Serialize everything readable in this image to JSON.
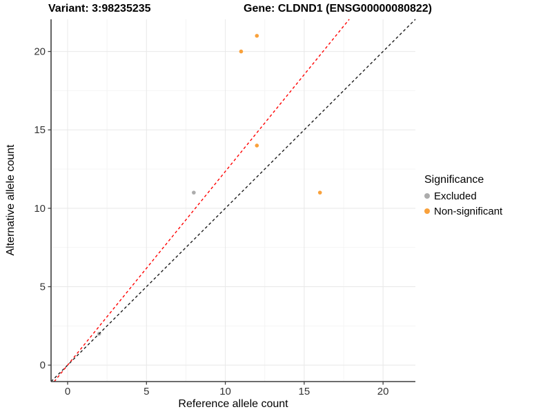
{
  "titles": {
    "variant": "Variant: 3:98235235",
    "gene": "Gene: CLDND1 (ENSG00000080822)"
  },
  "chart_data": {
    "type": "scatter",
    "xlabel": "Reference allele count",
    "ylabel": "Alternative allele count",
    "xlim": [
      -1.05,
      22.05
    ],
    "ylim": [
      -1.05,
      22.05
    ],
    "x_ticks": [
      0,
      5,
      10,
      15,
      20
    ],
    "y_ticks": [
      0,
      5,
      10,
      15,
      20
    ],
    "x_minor_ticks": [
      2.5,
      7.5,
      12.5,
      17.5
    ],
    "y_minor_ticks": [
      2.5,
      7.5,
      12.5,
      17.5
    ],
    "grid": "major+minor",
    "legend_position": "right",
    "series": [
      {
        "name": "Excluded",
        "color": "#ACACAC",
        "points": [
          [
            2,
            2
          ],
          [
            8,
            11
          ]
        ]
      },
      {
        "name": "Non-significant",
        "color": "#F9A13B",
        "points": [
          [
            11,
            20
          ],
          [
            12,
            21
          ],
          [
            12,
            14
          ],
          [
            16,
            11
          ]
        ]
      }
    ],
    "lines": [
      {
        "name": "identity-line",
        "color": "#1A1A1A",
        "style": "dashed",
        "slope": 1,
        "intercept": 0
      },
      {
        "name": "fitted-ratio-line",
        "color": "#FF0000",
        "style": "dashed",
        "slope": 1.235,
        "intercept": 0
      }
    ],
    "legend": {
      "title": "Significance",
      "items": [
        {
          "label": "Excluded",
          "color": "#ACACAC"
        },
        {
          "label": "Non-significant",
          "color": "#F9A13B"
        }
      ]
    },
    "colors": {
      "grid_major": "#E8E8E8",
      "grid_minor": "#F4F4F4",
      "axis_line": "#3C3C3C",
      "tick_label": "#333333"
    }
  }
}
